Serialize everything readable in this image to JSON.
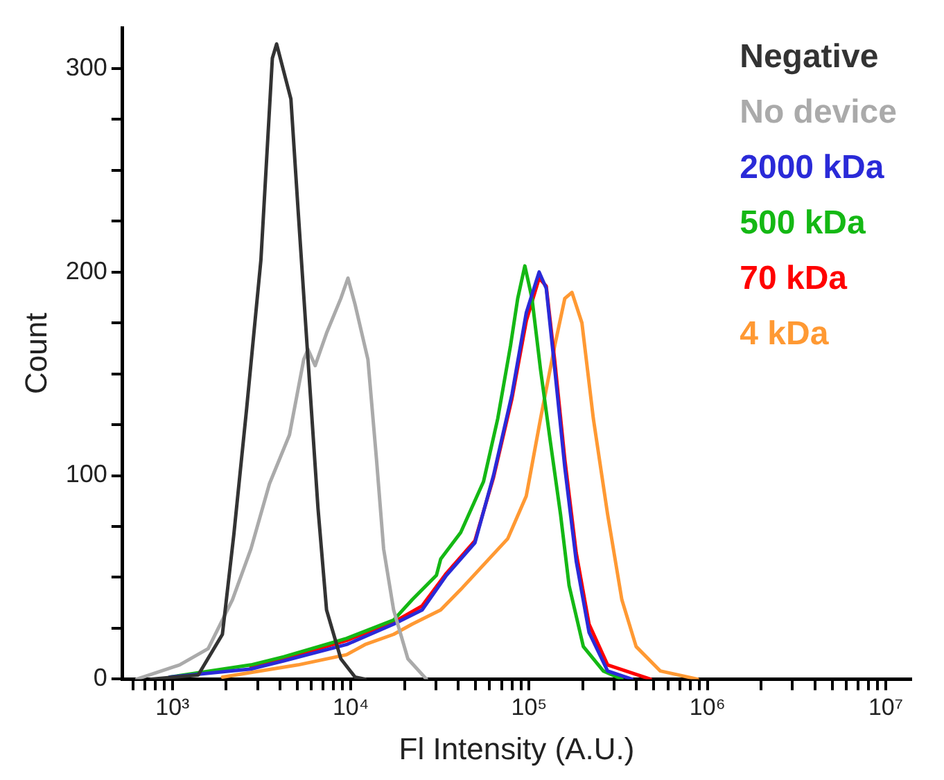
{
  "chart_data": {
    "type": "line",
    "xlabel": "Fl Intensity (A.U.)",
    "ylabel": "Count",
    "log": "x",
    "grid": false,
    "legend": "top right",
    "marker": "none",
    "line_style": "solid",
    "xlim": [
      525,
      13800000
    ],
    "xticks": [
      {
        "value": 600,
        "label": null
      },
      {
        "value": 700,
        "label": null
      },
      {
        "value": 800,
        "label": null
      },
      {
        "value": 900,
        "label": null
      },
      {
        "value": 1000,
        "label": "10³"
      },
      {
        "value": 2000,
        "label": null
      },
      {
        "value": 3000,
        "label": null
      },
      {
        "value": 4000,
        "label": null
      },
      {
        "value": 5000,
        "label": null
      },
      {
        "value": 6000,
        "label": null
      },
      {
        "value": 7000,
        "label": null
      },
      {
        "value": 8000,
        "label": null
      },
      {
        "value": 9000,
        "label": null
      },
      {
        "value": 10000,
        "label": "10⁴"
      },
      {
        "value": 20000,
        "label": null
      },
      {
        "value": 30000,
        "label": null
      },
      {
        "value": 40000,
        "label": null
      },
      {
        "value": 50000,
        "label": null
      },
      {
        "value": 60000,
        "label": null
      },
      {
        "value": 70000,
        "label": null
      },
      {
        "value": 80000,
        "label": null
      },
      {
        "value": 90000,
        "label": null
      },
      {
        "value": 100000,
        "label": "10⁵"
      },
      {
        "value": 200000,
        "label": null
      },
      {
        "value": 300000,
        "label": null
      },
      {
        "value": 400000,
        "label": null
      },
      {
        "value": 500000,
        "label": null
      },
      {
        "value": 600000,
        "label": null
      },
      {
        "value": 700000,
        "label": null
      },
      {
        "value": 800000,
        "label": null
      },
      {
        "value": 900000,
        "label": null
      },
      {
        "value": 1000000,
        "label": "10⁶"
      },
      {
        "value": 2000000,
        "label": null
      },
      {
        "value": 3000000,
        "label": null
      },
      {
        "value": 4000000,
        "label": null
      },
      {
        "value": 5000000,
        "label": null
      },
      {
        "value": 6000000,
        "label": null
      },
      {
        "value": 7000000,
        "label": null
      },
      {
        "value": 8000000,
        "label": null
      },
      {
        "value": 9000000,
        "label": null
      },
      {
        "value": 10000000,
        "label": "10⁷"
      }
    ],
    "ylim": [
      0,
      320
    ],
    "yticks": [
      0,
      {
        "value": 25,
        "label": null
      },
      {
        "value": 50,
        "label": null
      },
      {
        "value": 75,
        "label": null
      },
      100,
      {
        "value": 125,
        "label": null
      },
      {
        "value": 150,
        "label": null
      },
      {
        "value": 175,
        "label": null
      },
      200,
      {
        "value": 225,
        "label": null
      },
      {
        "value": 250,
        "label": null
      },
      {
        "value": 275,
        "label": null
      },
      300
    ],
    "series": [
      {
        "name": "Negative",
        "color": "#333333",
        "x": [
          759,
          1393,
          1905,
          2208,
          2606,
          3133,
          3631,
          3837,
          4613,
          5058,
          5754,
          6546,
          7311,
          8790,
          10568,
          12023
        ],
        "values": [
          0,
          2,
          22,
          71,
          133,
          206,
          305,
          312,
          285,
          231,
          157,
          84,
          34,
          10,
          1,
          0
        ]
      },
      {
        "name": "No device",
        "color": "#aaaaaa",
        "x": [
          631,
          1096,
          1585,
          2168,
          2754,
          3499,
          4529,
          5445,
          5754,
          6310,
          7311,
          8790,
          9638,
          10568,
          12474,
          13932,
          15276,
          17378,
          20893,
          26546
        ],
        "values": [
          0,
          7,
          15,
          39,
          64,
          96,
          120,
          157,
          162,
          154,
          170,
          187,
          197,
          184,
          157,
          108,
          64,
          34,
          10,
          0
        ]
      },
      {
        "name": "2000 kDa",
        "color": "#2a2ad8",
        "x": [
          964,
          2754,
          4207,
          9462,
          17378,
          25119,
          34356,
          49659,
          63096,
          80168,
          96383,
          113763,
          124738,
          139316,
          158489,
          183654,
          216770,
          275423,
          376704
        ],
        "values": [
          1,
          5,
          9,
          17,
          27,
          34,
          51,
          67,
          100,
          140,
          180,
          200,
          192,
          152,
          104,
          58,
          23,
          4,
          0
        ]
      },
      {
        "name": "500 kDa",
        "color": "#14b814",
        "x": [
          964,
          2754,
          4207,
          9462,
          17378,
          22080,
          30200,
          31916,
          41305,
          55463,
          66681,
          78705,
          86298,
          94624,
          103753,
          115878,
          131826,
          149968,
          167494,
          201372,
          260615,
          331131
        ],
        "values": [
          1,
          7,
          11,
          20,
          29,
          39,
          51,
          59,
          72,
          97,
          128,
          164,
          187,
          203,
          187,
          152,
          116,
          81,
          46,
          16,
          4,
          0
        ]
      },
      {
        "name": "70 kDa",
        "color": "#ff0000",
        "x": [
          2754,
          4207,
          9462,
          17378,
          25119,
          34356,
          49659,
          63096,
          80168,
          96383,
          113763,
          124738,
          139316,
          158489,
          183654,
          216770,
          275423,
          478630
        ],
        "values": [
          6,
          10,
          19,
          28,
          36,
          52,
          68,
          99,
          138,
          176,
          197,
          193,
          156,
          108,
          62,
          27,
          7,
          0
        ]
      },
      {
        "name": "4 kDa",
        "color": "#ff9933",
        "x": [
          1905,
          5058,
          9462,
          12023,
          17378,
          22080,
          31916,
          41305,
          75858,
          96383,
          115878,
          139316,
          158489,
          173780,
          197697,
          229087,
          275423,
          331131,
          398107,
          544503,
          879023
        ],
        "values": [
          1,
          7,
          12,
          17,
          22,
          27,
          34,
          44,
          69,
          90,
          128,
          164,
          187,
          190,
          175,
          128,
          81,
          39,
          16,
          4,
          0
        ]
      }
    ]
  }
}
